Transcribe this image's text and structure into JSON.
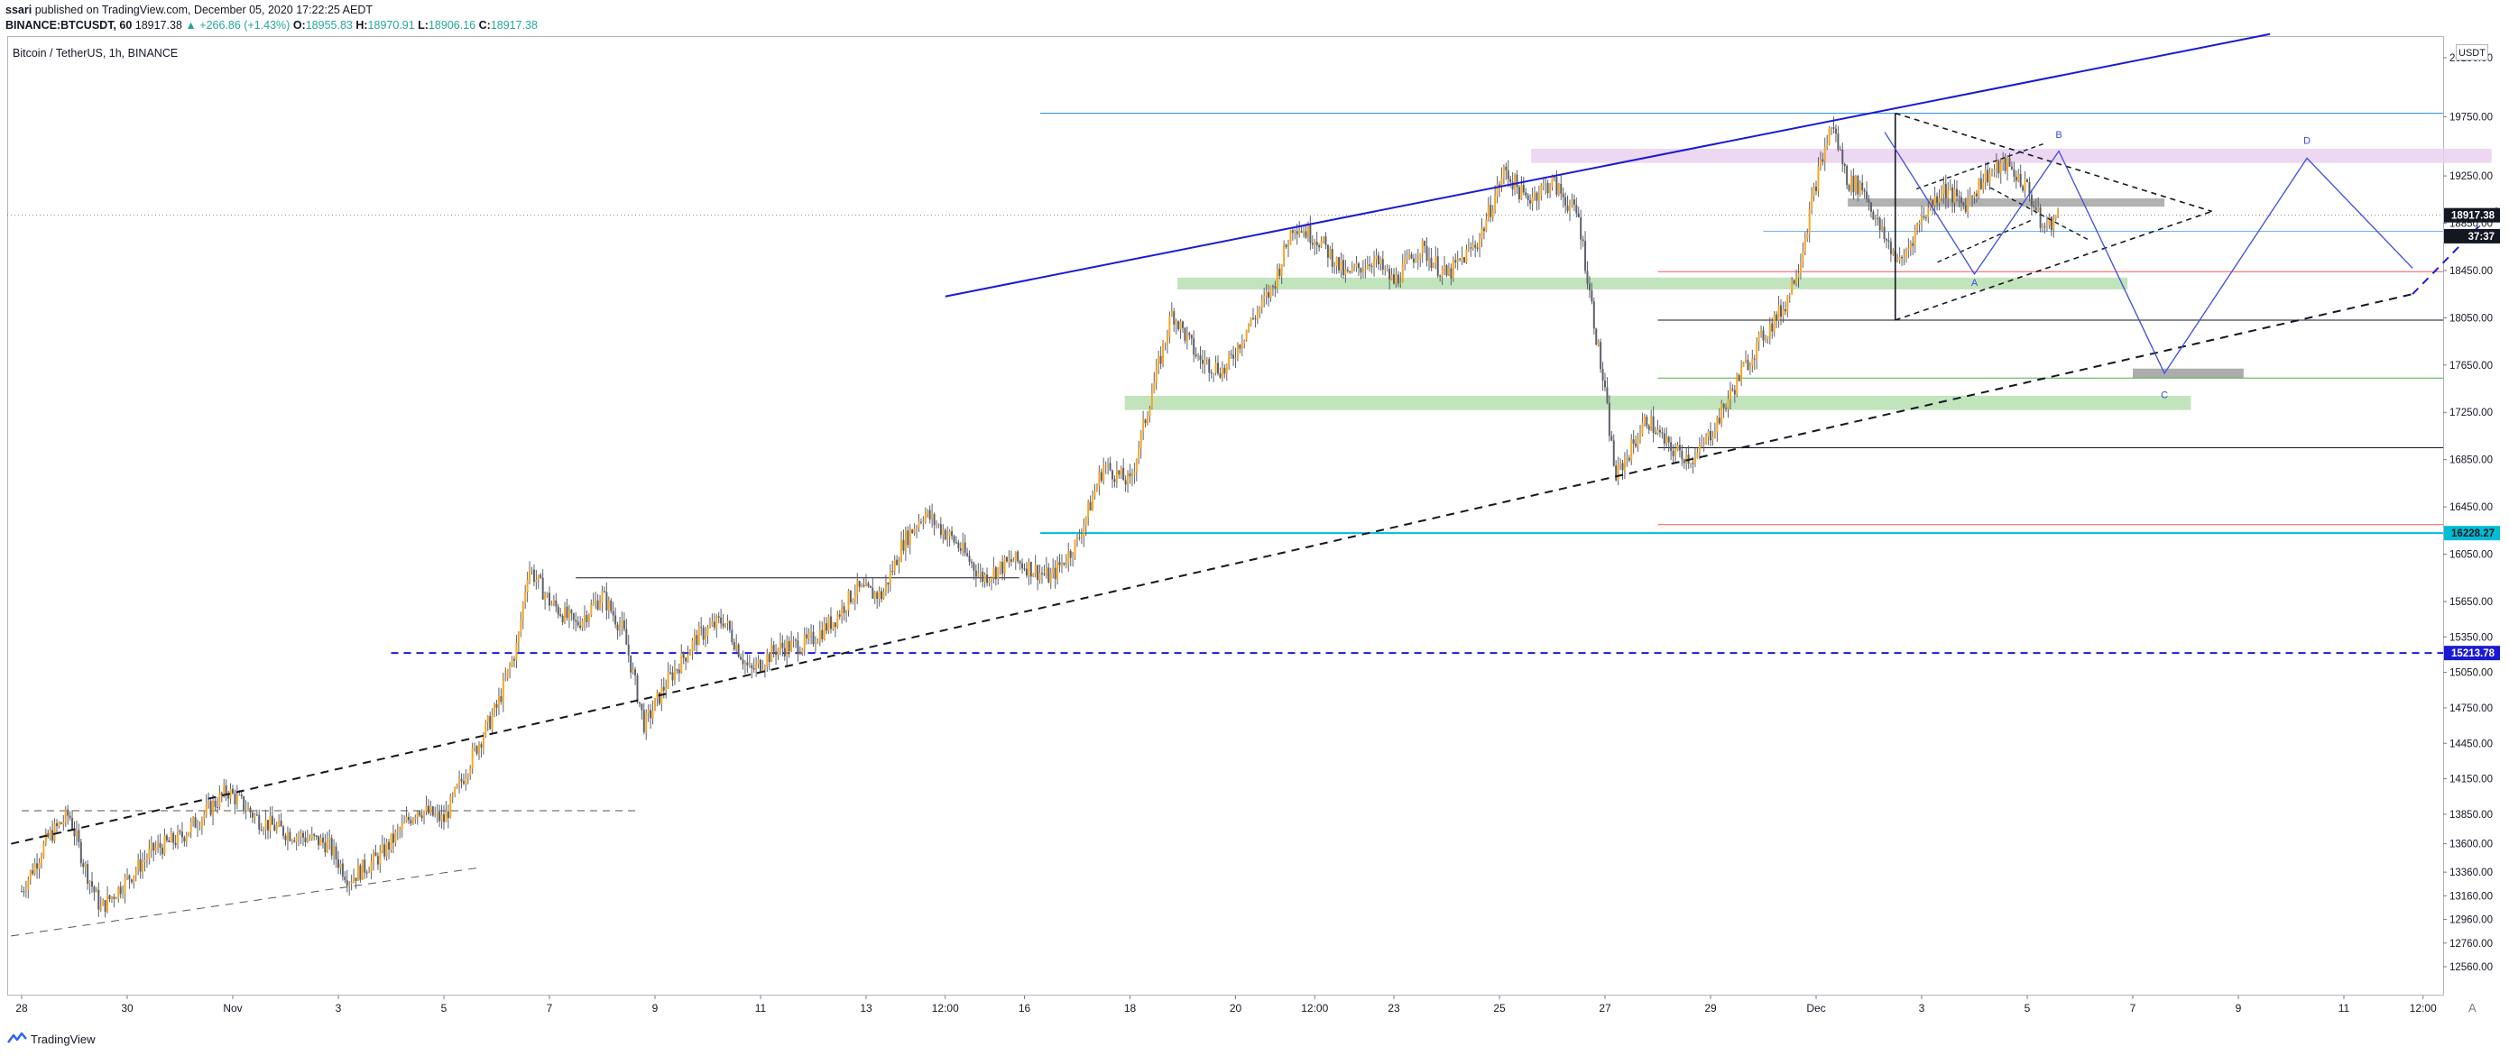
{
  "header": {
    "author": "ssari",
    "published": "published on TradingView.com, December 05, 2020 17:22:25 AEDT",
    "symbol": "BINANCE:BTCUSDT, 60",
    "last": "18917.38",
    "arrow": "▲",
    "change": "+266.86 (+1.43%)",
    "o_label": "O:",
    "o_value": "18955.83",
    "h_label": "H:",
    "h_value": "18970.91",
    "l_label": "L:",
    "l_value": "18906.16",
    "c_label": "C:",
    "c_value": "18917.38"
  },
  "chart_title": "Bitcoin / TetherUS, 1h, BINANCE",
  "currency_badge": "USDT",
  "footer": {
    "brand": "TradingView",
    "logo_icon": "tradingview-logo-icon"
  },
  "settings_icon": "A",
  "colors": {
    "up": "#26a69a",
    "candle": "#5d606b",
    "candle_up": "#f5a623",
    "trendline": "#1a1ad4",
    "zone_green": "#b7dfb0",
    "zone_pink": "#ead1f0",
    "zone_gray": "#a5a5a5",
    "cyan": "#00bcd4",
    "red_line": "#ff5252",
    "green_line": "#4caf50"
  },
  "chart_data": {
    "type": "candlestick",
    "symbol": "BINANCE:BTCUSDT",
    "interval": "1h",
    "y_unit": "USDT",
    "ylim": [
      12320,
      20750
    ],
    "y_ticks": [
      20250,
      19750,
      19250,
      18850,
      18450,
      18050,
      17650,
      17250,
      16850,
      16450,
      16050,
      15650,
      15350,
      15050,
      14750,
      14450,
      14150,
      13850,
      13600,
      13360,
      13160,
      12960,
      12760,
      12560
    ],
    "y_tick_labels": [
      "20250.00",
      "19750.00",
      "19250.00",
      "18850.00",
      "18450.00",
      "18050.00",
      "17650.00",
      "17250.00",
      "16850.00",
      "16450.00",
      "16050.00",
      "15650.00",
      "15350.00",
      "15050.00",
      "14750.00",
      "14450.00",
      "14150.00",
      "13850.00",
      "13600.00",
      "13360.00",
      "13160.00",
      "12960.00",
      "12760.00",
      "12560.00"
    ],
    "x_ticks": [
      {
        "label": "28",
        "day": 0
      },
      {
        "label": "30",
        "day": 2
      },
      {
        "label": "Nov",
        "day": 4
      },
      {
        "label": "3",
        "day": 6
      },
      {
        "label": "5",
        "day": 8
      },
      {
        "label": "7",
        "day": 10
      },
      {
        "label": "9",
        "day": 12
      },
      {
        "label": "11",
        "day": 14
      },
      {
        "label": "13",
        "day": 16
      },
      {
        "label": "12:00",
        "day": 17.5
      },
      {
        "label": "16",
        "day": 19
      },
      {
        "label": "18",
        "day": 21
      },
      {
        "label": "20",
        "day": 23
      },
      {
        "label": "12:00",
        "day": 24.5
      },
      {
        "label": "23",
        "day": 26
      },
      {
        "label": "25",
        "day": 28
      },
      {
        "label": "27",
        "day": 30
      },
      {
        "label": "29",
        "day": 32
      },
      {
        "label": "Dec",
        "day": 34
      },
      {
        "label": "3",
        "day": 36
      },
      {
        "label": "5",
        "day": 38
      },
      {
        "label": "7",
        "day": 40
      },
      {
        "label": "9",
        "day": 42
      },
      {
        "label": "11",
        "day": 44
      },
      {
        "label": "12:00",
        "day": 45.5
      }
    ],
    "price_path": [
      [
        0,
        13200
      ],
      [
        0.5,
        13650
      ],
      [
        0.9,
        13850
      ],
      [
        1.2,
        13400
      ],
      [
        1.5,
        13050
      ],
      [
        2,
        13300
      ],
      [
        2.5,
        13550
      ],
      [
        3,
        13650
      ],
      [
        3.9,
        14050
      ],
      [
        4.5,
        13800
      ],
      [
        5,
        13700
      ],
      [
        5.8,
        13600
      ],
      [
        6.2,
        13300
      ],
      [
        6.8,
        13500
      ],
      [
        7.5,
        13900
      ],
      [
        8,
        13800
      ],
      [
        8.6,
        14400
      ],
      [
        9,
        14750
      ],
      [
        9.4,
        15300
      ],
      [
        9.6,
        15950
      ],
      [
        10,
        15650
      ],
      [
        10.5,
        15450
      ],
      [
        11,
        15700
      ],
      [
        11.4,
        15400
      ],
      [
        11.8,
        14600
      ],
      [
        12.2,
        14950
      ],
      [
        12.8,
        15350
      ],
      [
        13.3,
        15500
      ],
      [
        13.8,
        15050
      ],
      [
        14.3,
        15250
      ],
      [
        14.9,
        15300
      ],
      [
        15.4,
        15500
      ],
      [
        15.8,
        15750
      ],
      [
        16.3,
        15700
      ],
      [
        16.7,
        16150
      ],
      [
        17.1,
        16400
      ],
      [
        17.7,
        16150
      ],
      [
        18.2,
        15850
      ],
      [
        18.8,
        16000
      ],
      [
        19.5,
        15850
      ],
      [
        20,
        16150
      ],
      [
        20.5,
        16800
      ],
      [
        21,
        16650
      ],
      [
        21.4,
        17400
      ],
      [
        21.8,
        18100
      ],
      [
        22.3,
        17700
      ],
      [
        22.8,
        17600
      ],
      [
        23.2,
        17950
      ],
      [
        23.7,
        18300
      ],
      [
        24.1,
        18850
      ],
      [
        24.6,
        18700
      ],
      [
        25.1,
        18400
      ],
      [
        25.6,
        18550
      ],
      [
        26,
        18350
      ],
      [
        26.5,
        18650
      ],
      [
        27,
        18400
      ],
      [
        27.6,
        18700
      ],
      [
        28.1,
        19300
      ],
      [
        28.5,
        19050
      ],
      [
        29,
        19200
      ],
      [
        29.5,
        18900
      ],
      [
        30,
        17400
      ],
      [
        30.2,
        16700
      ],
      [
        30.5,
        16950
      ],
      [
        30.8,
        17200
      ],
      [
        31.2,
        16950
      ],
      [
        31.7,
        16850
      ],
      [
        32.1,
        17150
      ],
      [
        32.6,
        17600
      ],
      [
        33,
        17900
      ],
      [
        33.4,
        18150
      ],
      [
        33.7,
        18550
      ],
      [
        34,
        19200
      ],
      [
        34.3,
        19700
      ],
      [
        34.6,
        19200
      ],
      [
        34.9,
        19150
      ],
      [
        35.2,
        18800
      ],
      [
        35.6,
        18500
      ],
      [
        36,
        18900
      ],
      [
        36.4,
        19150
      ],
      [
        36.8,
        19000
      ],
      [
        37.2,
        19250
      ],
      [
        37.6,
        19350
      ],
      [
        38,
        19150
      ],
      [
        38.3,
        18800
      ],
      [
        38.6,
        18917
      ]
    ],
    "horizontal_lines": [
      {
        "price": 19780,
        "day_from": 19.3,
        "day_to": 46.8,
        "style": "solid",
        "color": "#1e88e5"
      },
      {
        "price": 18780,
        "day_from": 33,
        "day_to": 46.8,
        "style": "solid",
        "color": "#1e88e5",
        "width": 0.6
      },
      {
        "price": 18440,
        "day_from": 31,
        "day_to": 46.8,
        "style": "solid",
        "color": "#ff5252"
      },
      {
        "price": 18030,
        "day_from": 31,
        "day_to": 46.8,
        "style": "solid",
        "color": "#131722"
      },
      {
        "price": 17540,
        "day_from": 31,
        "day_to": 46.8,
        "style": "solid",
        "color": "#4caf50"
      },
      {
        "price": 16950,
        "day_from": 31,
        "day_to": 46.8,
        "style": "solid",
        "color": "#131722"
      },
      {
        "price": 16300,
        "day_from": 31,
        "day_to": 46.8,
        "style": "solid",
        "color": "#ff5252"
      },
      {
        "price": 16228.27,
        "day_from": 19.3,
        "day_to": 46.8,
        "style": "solid",
        "color": "#00bcd4",
        "width": 2
      },
      {
        "price": 15213.78,
        "day_from": 7,
        "day_to": 46.8,
        "style": "dashed",
        "color": "#1a1ad4",
        "width": 2
      },
      {
        "price": 15850,
        "day_from": 10.5,
        "day_to": 18.9,
        "style": "solid",
        "color": "#131722"
      },
      {
        "price": 13880,
        "day_from": 0,
        "day_to": 11.7,
        "style": "dashed",
        "color": "#555555"
      }
    ],
    "trend_lines": [
      {
        "from": [
          17.5,
          18230
        ],
        "to": [
          42.6,
          20450
        ],
        "style": "solid",
        "color": "#1a1ad4",
        "width": 2
      },
      {
        "from": [
          -0.2,
          13600
        ],
        "to": [
          45.3,
          18250
        ],
        "style": "dashed",
        "color": "#131722",
        "width": 2
      },
      {
        "from": [
          45.3,
          18250
        ],
        "to": [
          46.9,
          18980
        ],
        "style": "dashed",
        "color": "#1a1ad4",
        "width": 2
      },
      {
        "from": [
          -0.2,
          12820
        ],
        "to": [
          8.7,
          13400
        ],
        "style": "dashed",
        "color": "#555555"
      }
    ],
    "zones": [
      {
        "day_from": 28.6,
        "day_to": 46.8,
        "price_top": 19480,
        "price_bottom": 19360,
        "color": "#ead1f0"
      },
      {
        "day_from": 21.9,
        "day_to": 39.9,
        "price_top": 18390,
        "price_bottom": 18290,
        "color": "#b7dfb0"
      },
      {
        "day_from": 20.9,
        "day_to": 41.1,
        "price_top": 17390,
        "price_bottom": 17270,
        "color": "#b7dfb0"
      },
      {
        "day_from": 34.6,
        "day_to": 40.6,
        "price_top": 19060,
        "price_bottom": 18990,
        "color": "#a5a5a5"
      },
      {
        "day_from": 40,
        "day_to": 42.1,
        "price_top": 17620,
        "price_bottom": 17540,
        "color": "#9e9e9e"
      }
    ],
    "triangle_pattern": [
      [
        [
          35.5,
          19780
        ],
        [
          41.5,
          18950
        ]
      ],
      [
        [
          35.5,
          18030
        ],
        [
          41.5,
          18950
        ]
      ],
      [
        [
          35.5,
          19780
        ],
        [
          35.5,
          18030
        ]
      ]
    ],
    "triangle_inner": [
      [
        [
          35.9,
          19140
        ],
        [
          38.3,
          19520
        ]
      ],
      [
        [
          37.3,
          19150
        ],
        [
          39.2,
          18700
        ]
      ],
      [
        [
          36.3,
          18520
        ],
        [
          38.1,
          18880
        ]
      ]
    ],
    "harmonic_pattern": {
      "points": [
        [
          35.3,
          19620
        ],
        [
          37.0,
          18420
        ],
        [
          38.6,
          19460
        ],
        [
          40.6,
          17580
        ],
        [
          43.3,
          19400
        ],
        [
          45.3,
          18470
        ]
      ],
      "labels": [
        {
          "text": "A",
          "day": 37.0,
          "price": 18320
        },
        {
          "text": "B",
          "day": 38.6,
          "price": 19570
        },
        {
          "text": "C",
          "day": 40.6,
          "price": 17370
        },
        {
          "text": "D",
          "day": 43.3,
          "price": 19520
        }
      ]
    },
    "price_labels": [
      {
        "text": "18917.38",
        "price": 18917.38,
        "bg": "#131722",
        "fg": "#ffffff"
      },
      {
        "text": "37:37",
        "price": 18740,
        "bg": "#131722",
        "fg": "#ffffff"
      },
      {
        "text": "16228.27",
        "price": 16228.27,
        "bg": "#00bcd4",
        "fg": "#131722"
      },
      {
        "text": "15213.78",
        "price": 15213.78,
        "bg": "#1a1ad4",
        "fg": "#ffffff"
      }
    ],
    "current_price": 18917.38
  }
}
